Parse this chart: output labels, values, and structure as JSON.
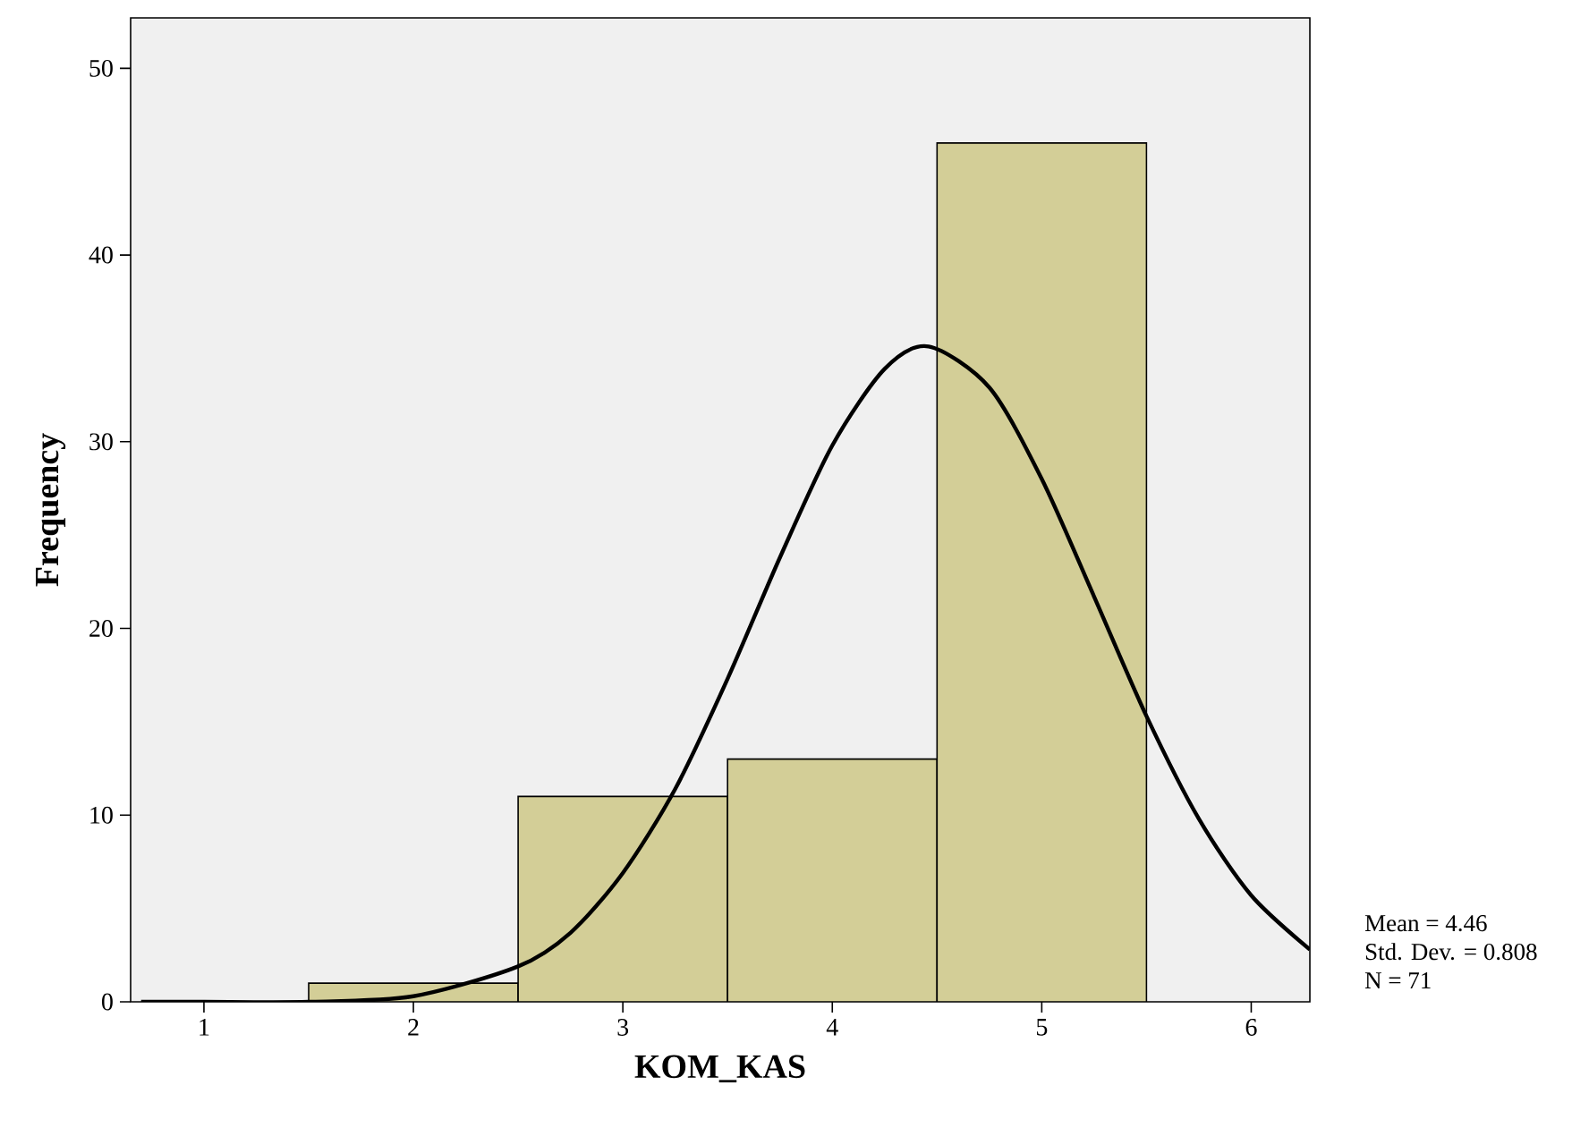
{
  "chart_data": {
    "type": "histogram",
    "xlabel": "KOM_KAS",
    "ylabel": "Frequency",
    "xlim": [
      0.65,
      6.28
    ],
    "ylim": [
      0,
      52.7
    ],
    "xticks": [
      1,
      2,
      3,
      4,
      5,
      6
    ],
    "yticks": [
      0,
      10,
      20,
      30,
      40,
      50
    ],
    "series": [
      {
        "color": "#d3ce97",
        "bins": [
          1.5,
          2.5,
          3.5,
          4.5,
          5.5
        ],
        "values": [
          1,
          11,
          13,
          46
        ]
      },
      {
        "type": "line",
        "color": "#000000",
        "x": [
          0.7,
          1,
          1.5,
          2,
          2.5,
          2.75,
          3,
          3.25,
          3.5,
          3.75,
          4,
          4.25,
          4.46,
          4.75,
          5,
          5.25,
          5.5,
          5.75,
          6,
          6.28
        ],
        "values": [
          0,
          0,
          0,
          0.3,
          1.9,
          3.7,
          6.9,
          11.4,
          17.3,
          23.8,
          29.8,
          33.9,
          35.1,
          32.9,
          28.0,
          21.7,
          15.3,
          9.8,
          5.7,
          2.8
        ]
      }
    ],
    "annotations": [
      "Mean = 4.46",
      "Std. Dev. = 0.808",
      "N = 71"
    ]
  }
}
